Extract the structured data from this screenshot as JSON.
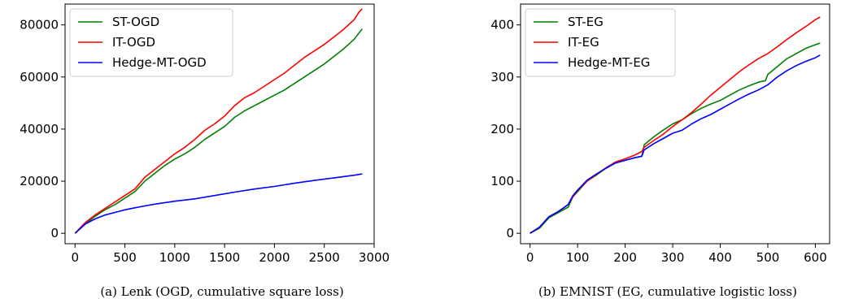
{
  "chart_data": [
    {
      "type": "line",
      "caption": "(a) Lenk (OGD, cumulative square loss)",
      "xlim": [
        -100,
        3000
      ],
      "ylim": [
        -4000,
        88000
      ],
      "xticks": [
        0,
        500,
        1000,
        1500,
        2000,
        2500,
        3000
      ],
      "yticks": [
        0,
        20000,
        40000,
        60000,
        80000
      ],
      "grid": false,
      "legend_position": "top-left",
      "series": [
        {
          "name": "ST-OGD",
          "color": "#008000",
          "points": [
            [
              0,
              0
            ],
            [
              100,
              3500
            ],
            [
              200,
              6500
            ],
            [
              300,
              9000
            ],
            [
              400,
              11000
            ],
            [
              500,
              13500
            ],
            [
              600,
              16000
            ],
            [
              700,
              20000
            ],
            [
              800,
              23000
            ],
            [
              900,
              26000
            ],
            [
              1000,
              28500
            ],
            [
              1100,
              30500
            ],
            [
              1200,
              33000
            ],
            [
              1300,
              36000
            ],
            [
              1400,
              38500
            ],
            [
              1500,
              41000
            ],
            [
              1600,
              44500
            ],
            [
              1700,
              47000
            ],
            [
              1800,
              49000
            ],
            [
              1900,
              51000
            ],
            [
              2000,
              53000
            ],
            [
              2100,
              55000
            ],
            [
              2200,
              57500
            ],
            [
              2300,
              60000
            ],
            [
              2400,
              62500
            ],
            [
              2500,
              65000
            ],
            [
              2600,
              68000
            ],
            [
              2700,
              71000
            ],
            [
              2800,
              74500
            ],
            [
              2850,
              77000
            ],
            [
              2880,
              78500
            ]
          ]
        },
        {
          "name": "IT-OGD",
          "color": "#ff0000",
          "points": [
            [
              0,
              0
            ],
            [
              100,
              4000
            ],
            [
              200,
              7000
            ],
            [
              300,
              9500
            ],
            [
              400,
              12000
            ],
            [
              500,
              14500
            ],
            [
              600,
              17000
            ],
            [
              700,
              21500
            ],
            [
              800,
              24500
            ],
            [
              900,
              27500
            ],
            [
              1000,
              30500
            ],
            [
              1100,
              33000
            ],
            [
              1200,
              36000
            ],
            [
              1300,
              39500
            ],
            [
              1400,
              42000
            ],
            [
              1500,
              45000
            ],
            [
              1600,
              49000
            ],
            [
              1700,
              52000
            ],
            [
              1800,
              54000
            ],
            [
              1900,
              56500
            ],
            [
              2000,
              59000
            ],
            [
              2100,
              61500
            ],
            [
              2200,
              64500
            ],
            [
              2300,
              67500
            ],
            [
              2400,
              70000
            ],
            [
              2500,
              72500
            ],
            [
              2600,
              75500
            ],
            [
              2700,
              78500
            ],
            [
              2800,
              82000
            ],
            [
              2850,
              85000
            ],
            [
              2880,
              86200
            ]
          ]
        },
        {
          "name": "Hedge-MT-OGD",
          "color": "#0000ff",
          "points": [
            [
              0,
              0
            ],
            [
              100,
              3500
            ],
            [
              200,
              5500
            ],
            [
              300,
              7000
            ],
            [
              400,
              8000
            ],
            [
              500,
              9000
            ],
            [
              600,
              9800
            ],
            [
              700,
              10500
            ],
            [
              800,
              11200
            ],
            [
              1000,
              12300
            ],
            [
              1200,
              13200
            ],
            [
              1400,
              14500
            ],
            [
              1600,
              15800
            ],
            [
              1800,
              17000
            ],
            [
              2000,
              18000
            ],
            [
              2200,
              19200
            ],
            [
              2400,
              20300
            ],
            [
              2600,
              21300
            ],
            [
              2800,
              22300
            ],
            [
              2880,
              22800
            ]
          ]
        }
      ]
    },
    {
      "type": "line",
      "caption": "(b) EMNIST (EG, cumulative logistic loss)",
      "xlim": [
        -20,
        630
      ],
      "ylim": [
        -20,
        440
      ],
      "xticks": [
        0,
        100,
        200,
        300,
        400,
        500,
        600
      ],
      "yticks": [
        0,
        100,
        200,
        300,
        400
      ],
      "grid": false,
      "legend_position": "top-left",
      "series": [
        {
          "name": "ST-EG",
          "color": "#008000",
          "points": [
            [
              0,
              0
            ],
            [
              20,
              10
            ],
            [
              40,
              30
            ],
            [
              60,
              40
            ],
            [
              80,
              50
            ],
            [
              90,
              70
            ],
            [
              100,
              80
            ],
            [
              120,
              100
            ],
            [
              140,
              112
            ],
            [
              160,
              125
            ],
            [
              180,
              135
            ],
            [
              200,
              140
            ],
            [
              220,
              145
            ],
            [
              235,
              148
            ],
            [
              240,
              170
            ],
            [
              260,
              185
            ],
            [
              280,
              198
            ],
            [
              300,
              210
            ],
            [
              320,
              218
            ],
            [
              340,
              230
            ],
            [
              360,
              240
            ],
            [
              380,
              248
            ],
            [
              400,
              255
            ],
            [
              420,
              265
            ],
            [
              440,
              275
            ],
            [
              460,
              283
            ],
            [
              480,
              290
            ],
            [
              495,
              293
            ],
            [
              500,
              305
            ],
            [
              520,
              320
            ],
            [
              540,
              335
            ],
            [
              560,
              345
            ],
            [
              580,
              355
            ],
            [
              600,
              362
            ],
            [
              610,
              365
            ]
          ]
        },
        {
          "name": "IT-EG",
          "color": "#ff0000",
          "points": [
            [
              0,
              0
            ],
            [
              20,
              12
            ],
            [
              40,
              32
            ],
            [
              60,
              42
            ],
            [
              80,
              55
            ],
            [
              90,
              70
            ],
            [
              100,
              82
            ],
            [
              120,
              100
            ],
            [
              140,
              113
            ],
            [
              160,
              126
            ],
            [
              180,
              137
            ],
            [
              200,
              143
            ],
            [
              220,
              150
            ],
            [
              235,
              157
            ],
            [
              240,
              165
            ],
            [
              260,
              178
            ],
            [
              280,
              190
            ],
            [
              300,
              205
            ],
            [
              320,
              218
            ],
            [
              340,
              232
            ],
            [
              360,
              248
            ],
            [
              380,
              265
            ],
            [
              400,
              280
            ],
            [
              420,
              295
            ],
            [
              440,
              310
            ],
            [
              460,
              323
            ],
            [
              480,
              335
            ],
            [
              500,
              345
            ],
            [
              520,
              358
            ],
            [
              540,
              372
            ],
            [
              560,
              385
            ],
            [
              580,
              397
            ],
            [
              600,
              410
            ],
            [
              610,
              415
            ]
          ]
        },
        {
          "name": "Hedge-MT-EG",
          "color": "#0000ff",
          "points": [
            [
              0,
              0
            ],
            [
              20,
              12
            ],
            [
              40,
              32
            ],
            [
              60,
              42
            ],
            [
              80,
              55
            ],
            [
              90,
              72
            ],
            [
              100,
              83
            ],
            [
              120,
              102
            ],
            [
              140,
              114
            ],
            [
              160,
              125
            ],
            [
              180,
              135
            ],
            [
              200,
              140
            ],
            [
              220,
              145
            ],
            [
              235,
              148
            ],
            [
              240,
              160
            ],
            [
              260,
              172
            ],
            [
              280,
              182
            ],
            [
              300,
              192
            ],
            [
              320,
              198
            ],
            [
              340,
              210
            ],
            [
              360,
              220
            ],
            [
              380,
              228
            ],
            [
              400,
              238
            ],
            [
              420,
              248
            ],
            [
              440,
              258
            ],
            [
              460,
              267
            ],
            [
              480,
              275
            ],
            [
              500,
              285
            ],
            [
              520,
              300
            ],
            [
              540,
              312
            ],
            [
              560,
              322
            ],
            [
              580,
              330
            ],
            [
              600,
              337
            ],
            [
              610,
              342
            ]
          ]
        }
      ]
    }
  ]
}
